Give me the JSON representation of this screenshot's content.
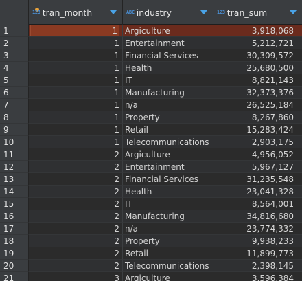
{
  "columns": [
    {
      "type_icon": "123",
      "label": "tran_month",
      "icon": "key-dot-icon"
    },
    {
      "type_icon": "ABC",
      "label": "industry"
    },
    {
      "type_icon": "123",
      "label": "tran_sum"
    }
  ],
  "rows": [
    {
      "n": "1",
      "month": "1",
      "industry": "Argiculture",
      "sum": "3,918,068"
    },
    {
      "n": "2",
      "month": "1",
      "industry": "Entertainment",
      "sum": "5,212,721"
    },
    {
      "n": "3",
      "month": "1",
      "industry": "Financial Services",
      "sum": "30,309,572"
    },
    {
      "n": "4",
      "month": "1",
      "industry": "Health",
      "sum": "25,680,500"
    },
    {
      "n": "5",
      "month": "1",
      "industry": "IT",
      "sum": "8,821,143"
    },
    {
      "n": "6",
      "month": "1",
      "industry": "Manufacturing",
      "sum": "32,373,376"
    },
    {
      "n": "7",
      "month": "1",
      "industry": "n/a",
      "sum": "26,525,184"
    },
    {
      "n": "8",
      "month": "1",
      "industry": "Property",
      "sum": "8,267,860"
    },
    {
      "n": "9",
      "month": "1",
      "industry": "Retail",
      "sum": "15,283,424"
    },
    {
      "n": "10",
      "month": "1",
      "industry": "Telecommunications",
      "sum": "2,903,175"
    },
    {
      "n": "11",
      "month": "2",
      "industry": "Argiculture",
      "sum": "4,956,052"
    },
    {
      "n": "12",
      "month": "2",
      "industry": "Entertainment",
      "sum": "5,967,127"
    },
    {
      "n": "13",
      "month": "2",
      "industry": "Financial Services",
      "sum": "31,235,548"
    },
    {
      "n": "14",
      "month": "2",
      "industry": "Health",
      "sum": "23,041,328"
    },
    {
      "n": "15",
      "month": "2",
      "industry": "IT",
      "sum": "8,564,001"
    },
    {
      "n": "16",
      "month": "2",
      "industry": "Manufacturing",
      "sum": "34,816,680"
    },
    {
      "n": "17",
      "month": "2",
      "industry": "n/a",
      "sum": "23,774,332"
    },
    {
      "n": "18",
      "month": "2",
      "industry": "Property",
      "sum": "9,938,233"
    },
    {
      "n": "19",
      "month": "2",
      "industry": "Retail",
      "sum": "11,899,773"
    },
    {
      "n": "20",
      "month": "2",
      "industry": "Telecommunications",
      "sum": "2,398,145"
    },
    {
      "n": "21",
      "month": "3",
      "industry": "Argiculture",
      "sum": "3,596,384"
    }
  ],
  "selected_row": "1",
  "colors": {
    "background": "#2b2b2b",
    "header": "#3a3d40",
    "selection": "#6b2b1d",
    "accent": "#4aa3e6",
    "key": "#e8a33c"
  }
}
